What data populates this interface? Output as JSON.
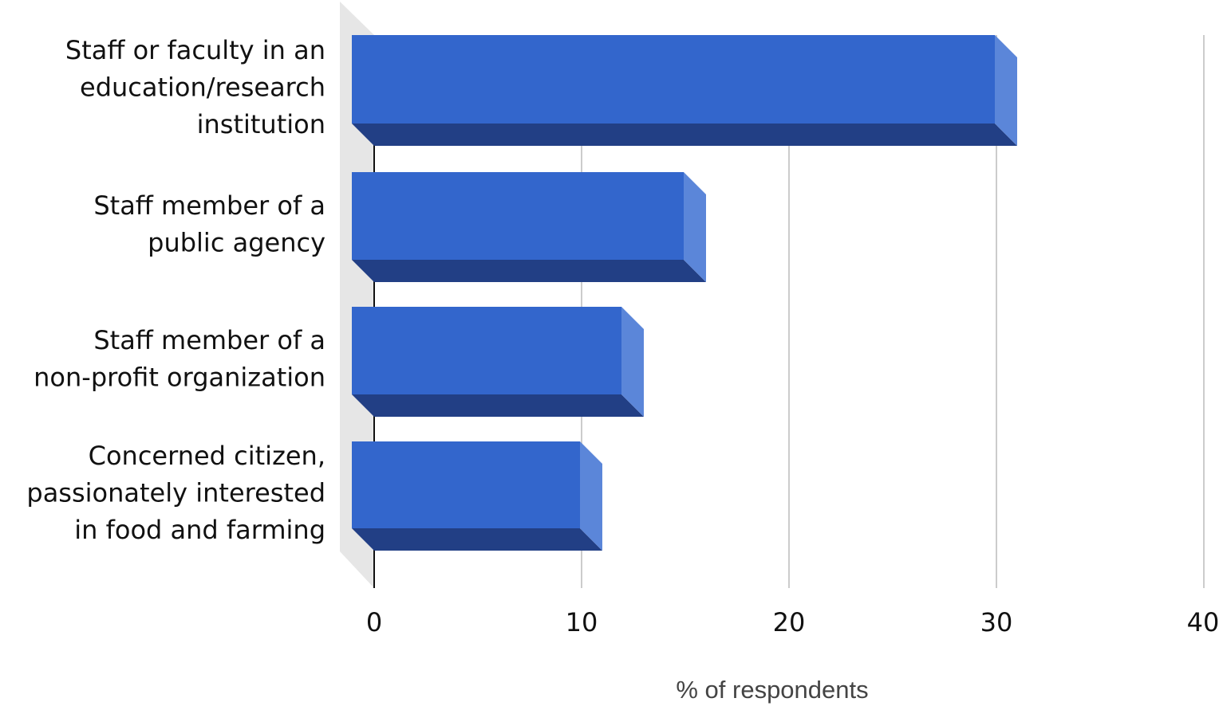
{
  "chart_data": {
    "type": "bar",
    "orientation": "horizontal",
    "style": "3d",
    "categories": [
      [
        "Staff or faculty in an",
        "education/research",
        "institution"
      ],
      [
        "Staff member of a",
        "public agency"
      ],
      [
        "Staff member of a",
        "non-profit organization"
      ],
      [
        "Concerned citizen,",
        "passionately interested",
        "in food and farming"
      ]
    ],
    "values": [
      31,
      16,
      13,
      11
    ],
    "xlabel": "% of respondents",
    "xlim": [
      0,
      40
    ],
    "xticks": [
      "0",
      "10",
      "20",
      "30",
      "40"
    ],
    "grid": true,
    "colors": {
      "bar_front": "#3366cc",
      "bar_bottom": "#223f85",
      "bar_side": "#5b86d9",
      "wall": "#e6e6e6",
      "grid": "#cccccc",
      "axis": "#111111"
    }
  }
}
